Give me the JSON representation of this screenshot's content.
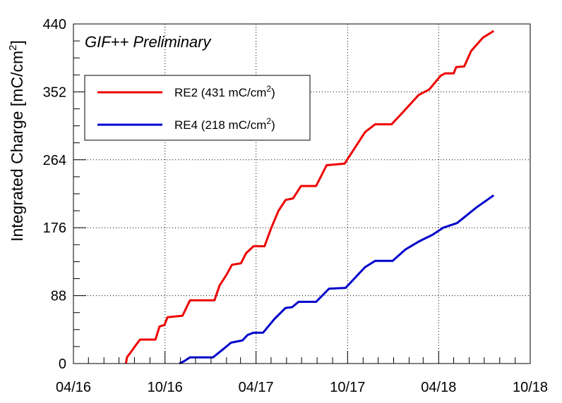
{
  "chart_data": {
    "type": "line",
    "annotation": "GIF++ Preliminary",
    "ylabel": "Integrated Charge [mC/cm",
    "ylabel_sup": "2",
    "ylabel_tail": "]",
    "ylim": [
      0,
      440
    ],
    "yticks": [
      0,
      88,
      176,
      264,
      352,
      440
    ],
    "ytick_labels": [
      "0",
      "88",
      "176",
      "264",
      "352",
      "440"
    ],
    "xlim": [
      "2016-04-01",
      "2018-10-01"
    ],
    "xticks": [
      "2016-04-01",
      "2016-10-01",
      "2017-04-01",
      "2017-10-01",
      "2018-04-01",
      "2018-10-01"
    ],
    "xtick_labels": [
      "04/16",
      "10/16",
      "04/17",
      "10/17",
      "04/18",
      "10/18"
    ],
    "grid": true,
    "legend_position": "top-left",
    "legend": [
      {
        "text": "RE2 (431 mC/cm",
        "sup": "2",
        "tail": ")",
        "color": "#ee0000"
      },
      {
        "text": "RE4 (218 mC/cm",
        "sup": "2",
        "tail": ")",
        "color": "#0000cc"
      }
    ],
    "series": [
      {
        "color": "#ee0000",
        "points": [
          [
            "2016-07-15",
            0
          ],
          [
            "2016-07-17",
            8
          ],
          [
            "2016-07-25",
            15
          ],
          [
            "2016-08-05",
            25
          ],
          [
            "2016-08-12",
            31
          ],
          [
            "2016-09-12",
            31
          ],
          [
            "2016-09-20",
            48
          ],
          [
            "2016-09-30",
            50
          ],
          [
            "2016-10-06",
            60
          ],
          [
            "2016-11-05",
            62
          ],
          [
            "2016-11-20",
            82
          ],
          [
            "2017-01-08",
            82
          ],
          [
            "2017-01-18",
            101
          ],
          [
            "2017-02-01",
            115
          ],
          [
            "2017-02-12",
            128
          ],
          [
            "2017-03-02",
            130
          ],
          [
            "2017-03-12",
            143
          ],
          [
            "2017-03-27",
            152
          ],
          [
            "2017-04-18",
            152
          ],
          [
            "2017-05-01",
            175
          ],
          [
            "2017-05-16",
            198
          ],
          [
            "2017-05-30",
            212
          ],
          [
            "2017-06-14",
            214
          ],
          [
            "2017-06-30",
            230
          ],
          [
            "2017-07-30",
            230
          ],
          [
            "2017-08-20",
            257
          ],
          [
            "2017-09-25",
            259
          ],
          [
            "2017-10-18",
            282
          ],
          [
            "2017-11-05",
            300
          ],
          [
            "2017-11-25",
            310
          ],
          [
            "2017-12-28",
            310
          ],
          [
            "2018-01-20",
            326
          ],
          [
            "2018-02-20",
            348
          ],
          [
            "2018-03-13",
            355
          ],
          [
            "2018-04-05",
            373
          ],
          [
            "2018-04-14",
            376
          ],
          [
            "2018-05-01",
            376
          ],
          [
            "2018-05-06",
            384
          ],
          [
            "2018-05-22",
            385
          ],
          [
            "2018-06-05",
            405
          ],
          [
            "2018-06-28",
            422
          ],
          [
            "2018-07-20",
            431
          ]
        ]
      },
      {
        "color": "#0000cc",
        "points": [
          [
            "2016-10-30",
            0
          ],
          [
            "2016-11-08",
            3
          ],
          [
            "2016-11-20",
            8
          ],
          [
            "2017-01-05",
            8
          ],
          [
            "2017-01-28",
            20
          ],
          [
            "2017-02-10",
            27
          ],
          [
            "2017-03-05",
            30
          ],
          [
            "2017-03-15",
            37
          ],
          [
            "2017-03-27",
            40
          ],
          [
            "2017-04-15",
            40
          ],
          [
            "2017-05-08",
            58
          ],
          [
            "2017-05-30",
            72
          ],
          [
            "2017-06-12",
            73
          ],
          [
            "2017-06-25",
            80
          ],
          [
            "2017-07-30",
            80
          ],
          [
            "2017-08-25",
            97
          ],
          [
            "2017-09-27",
            98
          ],
          [
            "2017-11-05",
            125
          ],
          [
            "2017-11-25",
            133
          ],
          [
            "2017-12-30",
            133
          ],
          [
            "2018-01-25",
            148
          ],
          [
            "2018-02-20",
            158
          ],
          [
            "2018-03-20",
            167
          ],
          [
            "2018-04-10",
            176
          ],
          [
            "2018-05-08",
            182
          ],
          [
            "2018-06-15",
            202
          ],
          [
            "2018-07-20",
            218
          ]
        ]
      }
    ]
  }
}
